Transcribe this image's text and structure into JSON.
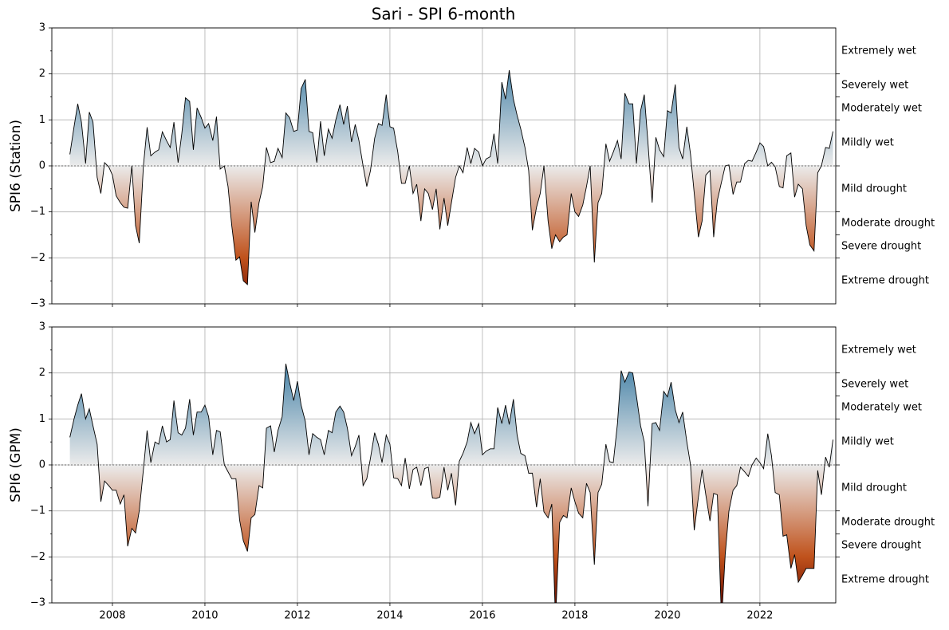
{
  "title": "Sari - SPI 6-month",
  "chart_data": [
    {
      "type": "line",
      "ylabel": "SPI6 (Station)",
      "grid": true,
      "show_xticklabels": false,
      "xlim": [
        2006.69,
        2023.64
      ],
      "xticks": [
        2008,
        2010,
        2012,
        2014,
        2016,
        2018,
        2020,
        2022
      ],
      "ylim": [
        -3,
        3
      ],
      "yticks": [
        {
          "value": -3,
          "label": "−3"
        },
        {
          "value": -2,
          "label": "−2"
        },
        {
          "value": -1,
          "label": "−1"
        },
        0,
        1,
        2,
        3
      ],
      "yticks_minor": [
        -2.5,
        -1.5,
        -0.5,
        0.5,
        1.5,
        2.5
      ],
      "wet_color": "#0b5d8f",
      "dry_color": "#c0521c",
      "extreme_dry_color": "#6e1000",
      "neutral_color": "#ebebeb",
      "line_color": "#000000",
      "classes": [
        {
          "label": "Extremely wet",
          "range": [
            2,
            3
          ]
        },
        {
          "label": "Severely wet",
          "range": [
            1.5,
            2
          ]
        },
        {
          "label": "Moderately wet",
          "range": [
            1,
            1.5
          ]
        },
        {
          "label": "Mildly wet",
          "range": [
            0,
            1
          ]
        },
        {
          "label": "Mild drought",
          "range": [
            -1,
            0
          ]
        },
        {
          "label": "Moderate drought",
          "range": [
            -1.5,
            -1
          ]
        },
        {
          "label": "Severe drought",
          "range": [
            -2,
            -1.5
          ]
        },
        {
          "label": "Extreme drought",
          "range": [
            -3,
            -2
          ]
        }
      ],
      "x": [
        2007.08,
        2007.17,
        2007.25,
        2007.33,
        2007.42,
        2007.5,
        2007.58,
        2007.67,
        2007.75,
        2007.83,
        2007.92,
        2008,
        2008.08,
        2008.17,
        2008.25,
        2008.33,
        2008.42,
        2008.5,
        2008.58,
        2008.67,
        2008.75,
        2008.83,
        2008.92,
        2009,
        2009.08,
        2009.17,
        2009.25,
        2009.33,
        2009.42,
        2009.5,
        2009.58,
        2009.67,
        2009.75,
        2009.83,
        2009.92,
        2010,
        2010.08,
        2010.17,
        2010.25,
        2010.33,
        2010.42,
        2010.5,
        2010.58,
        2010.67,
        2010.75,
        2010.83,
        2010.92,
        2011,
        2011.08,
        2011.17,
        2011.25,
        2011.33,
        2011.42,
        2011.5,
        2011.58,
        2011.67,
        2011.75,
        2011.83,
        2011.92,
        2012,
        2012.08,
        2012.17,
        2012.25,
        2012.33,
        2012.42,
        2012.5,
        2012.58,
        2012.67,
        2012.75,
        2012.83,
        2012.92,
        2013,
        2013.08,
        2013.17,
        2013.25,
        2013.33,
        2013.42,
        2013.5,
        2013.58,
        2013.67,
        2013.75,
        2013.83,
        2013.92,
        2014,
        2014.08,
        2014.17,
        2014.25,
        2014.33,
        2014.42,
        2014.5,
        2014.58,
        2014.67,
        2014.75,
        2014.83,
        2014.92,
        2015,
        2015.08,
        2015.17,
        2015.25,
        2015.33,
        2015.42,
        2015.5,
        2015.58,
        2015.67,
        2015.75,
        2015.83,
        2015.92,
        2016,
        2016.08,
        2016.17,
        2016.25,
        2016.33,
        2016.42,
        2016.5,
        2016.58,
        2016.67,
        2016.75,
        2016.83,
        2016.92,
        2017,
        2017.08,
        2017.17,
        2017.25,
        2017.33,
        2017.42,
        2017.5,
        2017.58,
        2017.67,
        2017.75,
        2017.83,
        2017.92,
        2018,
        2018.08,
        2018.17,
        2018.25,
        2018.33,
        2018.42,
        2018.5,
        2018.58,
        2018.67,
        2018.75,
        2018.83,
        2018.92,
        2019,
        2019.08,
        2019.17,
        2019.25,
        2019.33,
        2019.42,
        2019.5,
        2019.58,
        2019.67,
        2019.75,
        2019.83,
        2019.92,
        2020,
        2020.08,
        2020.17,
        2020.25,
        2020.33,
        2020.42,
        2020.5,
        2020.58,
        2020.67,
        2020.75,
        2020.83,
        2020.92,
        2021,
        2021.08,
        2021.17,
        2021.25,
        2021.33,
        2021.42,
        2021.5,
        2021.58,
        2021.67,
        2021.75,
        2021.83,
        2021.92,
        2022,
        2022.08,
        2022.17,
        2022.25,
        2022.33,
        2022.42,
        2022.5,
        2022.58,
        2022.67,
        2022.75,
        2022.83,
        2022.92,
        2023,
        2023.08,
        2023.17,
        2023.25,
        2023.33,
        2023.42,
        2023.5,
        2023.58
      ],
      "values": [
        0.25,
        0.85,
        1.35,
        0.95,
        0.05,
        1.17,
        0.95,
        -0.25,
        -0.6,
        0.07,
        -0.02,
        -0.2,
        -0.65,
        -0.8,
        -0.9,
        -0.92,
        0.0,
        -1.3,
        -1.68,
        0.0,
        0.84,
        0.22,
        0.3,
        0.35,
        0.74,
        0.55,
        0.4,
        0.95,
        0.07,
        0.7,
        1.48,
        1.4,
        0.35,
        1.26,
        1.05,
        0.82,
        0.92,
        0.55,
        1.07,
        -0.07,
        0.0,
        -0.45,
        -1.3,
        -2.05,
        -1.98,
        -2.5,
        -2.58,
        -0.78,
        -1.45,
        -0.8,
        -0.45,
        0.4,
        0.07,
        0.1,
        0.38,
        0.18,
        1.15,
        1.05,
        0.75,
        0.78,
        1.68,
        1.88,
        0.75,
        0.72,
        0.07,
        0.97,
        0.22,
        0.8,
        0.6,
        1.0,
        1.33,
        0.9,
        1.3,
        0.52,
        0.9,
        0.55,
        0.0,
        -0.45,
        -0.1,
        0.6,
        0.92,
        0.88,
        1.55,
        0.85,
        0.82,
        0.3,
        -0.38,
        -0.38,
        0.0,
        -0.6,
        -0.4,
        -1.2,
        -0.5,
        -0.6,
        -0.95,
        -0.5,
        -1.38,
        -0.7,
        -1.3,
        -0.8,
        -0.25,
        0.0,
        -0.15,
        0.4,
        0.05,
        0.38,
        0.3,
        0.0,
        0.15,
        0.2,
        0.7,
        0.05,
        1.82,
        1.45,
        2.08,
        1.45,
        1.1,
        0.8,
        0.4,
        -0.1,
        -1.4,
        -0.9,
        -0.6,
        0.0,
        -1.2,
        -1.8,
        -1.5,
        -1.65,
        -1.55,
        -1.5,
        -0.6,
        -1.0,
        -1.1,
        -0.85,
        -0.45,
        0.0,
        -2.1,
        -0.8,
        -0.6,
        0.48,
        0.1,
        0.3,
        0.55,
        0.15,
        1.58,
        1.35,
        1.35,
        0.05,
        1.2,
        1.55,
        0.5,
        -0.8,
        0.62,
        0.35,
        0.2,
        1.2,
        1.15,
        1.77,
        0.4,
        0.15,
        0.85,
        0.25,
        -0.6,
        -1.55,
        -1.2,
        -0.2,
        -0.1,
        -1.55,
        -0.75,
        -0.35,
        0.0,
        0.02,
        -0.62,
        -0.35,
        -0.35,
        0.05,
        0.12,
        0.1,
        0.3,
        0.5,
        0.42,
        0.0,
        0.08,
        -0.02,
        -0.45,
        -0.48,
        0.22,
        0.28,
        -0.68,
        -0.4,
        -0.5,
        -1.3,
        -1.72,
        -1.85,
        -0.15,
        0.0,
        0.4,
        0.38,
        0.75
      ]
    },
    {
      "type": "line",
      "ylabel": "SPI6 (GPM)",
      "grid": true,
      "show_xticklabels": true,
      "xlim": [
        2006.69,
        2023.64
      ],
      "xticks": [
        2008,
        2010,
        2012,
        2014,
        2016,
        2018,
        2020,
        2022
      ],
      "ylim": [
        -3,
        3
      ],
      "yticks": [
        {
          "value": -3,
          "label": "−3"
        },
        {
          "value": -2,
          "label": "−2"
        },
        {
          "value": -1,
          "label": "−1"
        },
        0,
        1,
        2,
        3
      ],
      "yticks_minor": [
        -2.5,
        -1.5,
        -0.5,
        0.5,
        1.5,
        2.5
      ],
      "wet_color": "#0b5d8f",
      "dry_color": "#c0521c",
      "extreme_dry_color": "#6e1000",
      "neutral_color": "#ebebeb",
      "line_color": "#000000",
      "classes": [
        {
          "label": "Extremely wet",
          "range": [
            2,
            3
          ]
        },
        {
          "label": "Severely wet",
          "range": [
            1.5,
            2
          ]
        },
        {
          "label": "Moderately wet",
          "range": [
            1,
            1.5
          ]
        },
        {
          "label": "Mildly wet",
          "range": [
            0,
            1
          ]
        },
        {
          "label": "Mild drought",
          "range": [
            -1,
            0
          ]
        },
        {
          "label": "Moderate drought",
          "range": [
            -1.5,
            -1
          ]
        },
        {
          "label": "Severe drought",
          "range": [
            -2,
            -1.5
          ]
        },
        {
          "label": "Extreme drought",
          "range": [
            -3,
            -2
          ]
        }
      ],
      "x": [
        2007.08,
        2007.17,
        2007.25,
        2007.33,
        2007.42,
        2007.5,
        2007.58,
        2007.67,
        2007.75,
        2007.83,
        2007.92,
        2008,
        2008.08,
        2008.17,
        2008.25,
        2008.33,
        2008.42,
        2008.5,
        2008.58,
        2008.67,
        2008.75,
        2008.83,
        2008.92,
        2009,
        2009.08,
        2009.17,
        2009.25,
        2009.33,
        2009.42,
        2009.5,
        2009.58,
        2009.67,
        2009.75,
        2009.83,
        2009.92,
        2010,
        2010.08,
        2010.17,
        2010.25,
        2010.33,
        2010.42,
        2010.5,
        2010.58,
        2010.67,
        2010.75,
        2010.83,
        2010.92,
        2011,
        2011.08,
        2011.17,
        2011.25,
        2011.33,
        2011.42,
        2011.5,
        2011.58,
        2011.67,
        2011.75,
        2011.83,
        2011.92,
        2012,
        2012.08,
        2012.17,
        2012.25,
        2012.33,
        2012.42,
        2012.5,
        2012.58,
        2012.67,
        2012.75,
        2012.83,
        2012.92,
        2013,
        2013.08,
        2013.17,
        2013.25,
        2013.33,
        2013.42,
        2013.5,
        2013.58,
        2013.67,
        2013.75,
        2013.83,
        2013.92,
        2014,
        2014.08,
        2014.17,
        2014.25,
        2014.33,
        2014.42,
        2014.5,
        2014.58,
        2014.67,
        2014.75,
        2014.83,
        2014.92,
        2015,
        2015.08,
        2015.17,
        2015.25,
        2015.33,
        2015.42,
        2015.5,
        2015.58,
        2015.67,
        2015.75,
        2015.83,
        2015.92,
        2016,
        2016.08,
        2016.17,
        2016.25,
        2016.33,
        2016.42,
        2016.5,
        2016.58,
        2016.67,
        2016.75,
        2016.83,
        2016.92,
        2017,
        2017.08,
        2017.17,
        2017.25,
        2017.33,
        2017.42,
        2017.5,
        2017.58,
        2017.67,
        2017.75,
        2017.83,
        2017.92,
        2018,
        2018.08,
        2018.17,
        2018.25,
        2018.33,
        2018.42,
        2018.5,
        2018.58,
        2018.67,
        2018.75,
        2018.83,
        2018.92,
        2019,
        2019.08,
        2019.17,
        2019.25,
        2019.33,
        2019.42,
        2019.5,
        2019.58,
        2019.67,
        2019.75,
        2019.83,
        2019.92,
        2020,
        2020.08,
        2020.17,
        2020.25,
        2020.33,
        2020.42,
        2020.5,
        2020.58,
        2020.67,
        2020.75,
        2020.83,
        2020.92,
        2021,
        2021.08,
        2021.17,
        2021.25,
        2021.33,
        2021.42,
        2021.5,
        2021.58,
        2021.67,
        2021.75,
        2021.83,
        2021.92,
        2022,
        2022.08,
        2022.17,
        2022.25,
        2022.33,
        2022.42,
        2022.5,
        2022.58,
        2022.67,
        2022.75,
        2022.83,
        2022.92,
        2023,
        2023.08,
        2023.17,
        2023.25,
        2023.33,
        2023.42,
        2023.5,
        2023.58
      ],
      "values": [
        0.6,
        1.0,
        1.3,
        1.55,
        1.0,
        1.22,
        0.85,
        0.45,
        -0.8,
        -0.35,
        -0.45,
        -0.55,
        -0.55,
        -0.85,
        -0.65,
        -1.77,
        -1.38,
        -1.48,
        -1.0,
        -0.1,
        0.75,
        0.05,
        0.5,
        0.45,
        0.85,
        0.5,
        0.55,
        1.4,
        0.7,
        0.65,
        0.8,
        1.43,
        0.65,
        1.15,
        1.15,
        1.3,
        1.05,
        0.22,
        0.75,
        0.72,
        0.0,
        -0.15,
        -0.3,
        -0.3,
        -1.2,
        -1.65,
        -1.88,
        -1.15,
        -1.08,
        -0.45,
        -0.5,
        0.8,
        0.85,
        0.28,
        0.75,
        1.05,
        2.2,
        1.8,
        1.4,
        1.82,
        1.3,
        0.95,
        0.22,
        0.68,
        0.6,
        0.55,
        0.22,
        0.75,
        0.7,
        1.15,
        1.28,
        1.15,
        0.8,
        0.2,
        0.4,
        0.65,
        -0.45,
        -0.3,
        0.15,
        0.7,
        0.45,
        0.05,
        0.65,
        0.45,
        -0.28,
        -0.3,
        -0.45,
        0.15,
        -0.52,
        -0.1,
        -0.05,
        -0.45,
        -0.08,
        -0.05,
        -0.72,
        -0.73,
        -0.7,
        -0.05,
        -0.55,
        -0.18,
        -0.88,
        0.08,
        0.25,
        0.5,
        0.92,
        0.68,
        0.9,
        0.22,
        0.3,
        0.35,
        0.35,
        1.25,
        0.9,
        1.3,
        0.88,
        1.43,
        0.65,
        0.25,
        0.2,
        -0.18,
        -0.18,
        -0.92,
        -0.3,
        -1.02,
        -1.15,
        -0.85,
        -3.4,
        -1.25,
        -1.1,
        -1.15,
        -0.5,
        -0.8,
        -1.05,
        -1.15,
        -0.4,
        -0.6,
        -2.17,
        -0.6,
        -0.42,
        0.45,
        0.07,
        0.05,
        0.9,
        2.05,
        1.8,
        2.02,
        2.0,
        1.5,
        0.85,
        0.5,
        -0.9,
        0.9,
        0.92,
        0.75,
        1.6,
        1.48,
        1.8,
        1.2,
        0.92,
        1.15,
        0.5,
        0.0,
        -1.42,
        -0.7,
        -0.1,
        -0.65,
        -1.22,
        -0.62,
        -0.65,
        -3.4,
        -1.95,
        -1.0,
        -0.55,
        -0.45,
        -0.05,
        -0.15,
        -0.25,
        0.0,
        0.15,
        0.05,
        -0.08,
        0.68,
        0.2,
        -0.6,
        -0.65,
        -1.55,
        -1.52,
        -2.25,
        -1.95,
        -2.55,
        -2.4,
        -2.25,
        -2.25,
        -2.25,
        -0.12,
        -0.65,
        0.17,
        -0.05,
        0.55
      ]
    }
  ]
}
